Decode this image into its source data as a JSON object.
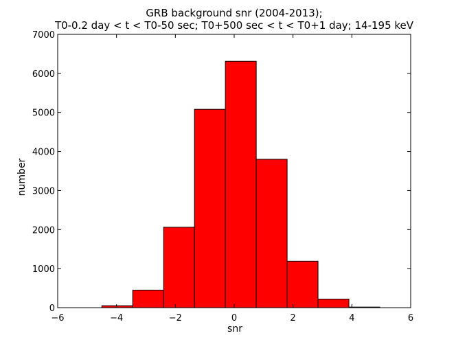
{
  "chart_data": {
    "type": "bar",
    "title_lines": [
      "GRB background snr (2004-2013);",
      "T0-0.2 day < t < T0-50 sec; T0+500 sec < t < T0+1 day; 14-195 keV"
    ],
    "xlabel": "snr",
    "ylabel": "number",
    "xlim": [
      -6,
      6
    ],
    "ylim": [
      0,
      7000
    ],
    "xticks": [
      -6,
      -4,
      -2,
      0,
      2,
      4,
      6
    ],
    "xtick_labels": [
      "−6",
      "−4",
      "−2",
      "0",
      "2",
      "4",
      "6"
    ],
    "yticks": [
      0,
      1000,
      2000,
      3000,
      4000,
      5000,
      6000,
      7000
    ],
    "ytick_labels": [
      "0",
      "1000",
      "2000",
      "3000",
      "4000",
      "5000",
      "6000",
      "7000"
    ],
    "bins": [
      {
        "x0": -4.5,
        "x1": -3.45,
        "value": 50
      },
      {
        "x0": -3.45,
        "x1": -2.4,
        "value": 450
      },
      {
        "x0": -2.4,
        "x1": -1.35,
        "value": 2060
      },
      {
        "x0": -1.35,
        "x1": -0.3,
        "value": 5080
      },
      {
        "x0": -0.3,
        "x1": 0.75,
        "value": 6310
      },
      {
        "x0": 0.75,
        "x1": 1.8,
        "value": 3800
      },
      {
        "x0": 1.8,
        "x1": 2.85,
        "value": 1190
      },
      {
        "x0": 2.85,
        "x1": 3.9,
        "value": 220
      },
      {
        "x0": 3.9,
        "x1": 4.95,
        "value": 15
      }
    ],
    "bar_color": "#ff0000",
    "edge_color": "#000000",
    "grid": false
  }
}
